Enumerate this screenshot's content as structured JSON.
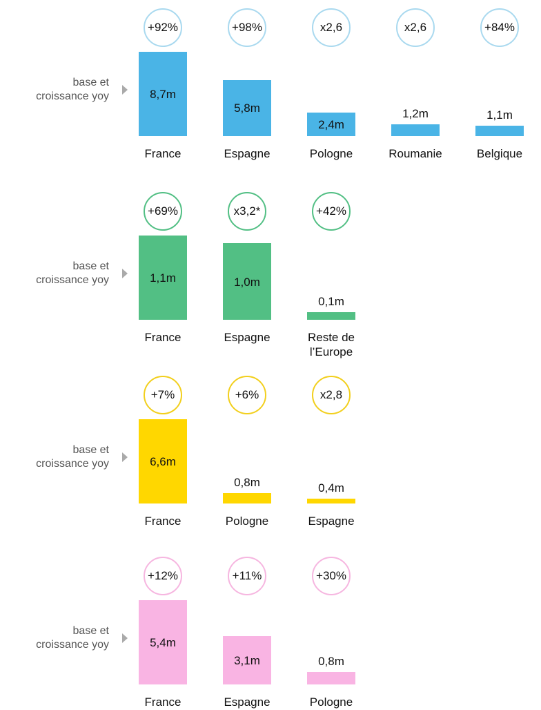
{
  "chart_data": [
    {
      "type": "bar",
      "label": "base et croissance yoy",
      "color": "#4ab4e6",
      "ring": "#a9d9ef",
      "categories": [
        "France",
        "Espagne",
        "Pologne",
        "Roumanie",
        "Belgique"
      ],
      "values": [
        8.7,
        5.8,
        2.4,
        1.2,
        1.1
      ],
      "value_labels": [
        "8,7m",
        "5,8m",
        "2,4m",
        "1,2m",
        "1,1m"
      ],
      "growth_labels": [
        "+92%",
        "+98%",
        "x2,6",
        "x2,6",
        "+84%"
      ],
      "ylim": [
        0,
        8.7
      ]
    },
    {
      "type": "bar",
      "label": "base et croissance yoy",
      "color": "#52bf84",
      "ring": "#52bf84",
      "categories": [
        "France",
        "Espagne",
        "Reste de l’Europe"
      ],
      "values": [
        1.1,
        1.0,
        0.1
      ],
      "value_labels": [
        "1,1m",
        "1,0m",
        "0,1m"
      ],
      "growth_labels": [
        "+69%",
        "x3,2*",
        "+42%"
      ],
      "ylim": [
        0,
        1.1
      ]
    },
    {
      "type": "bar",
      "label": "base et croissance yoy",
      "color": "#ffd700",
      "ring": "#f2cf1c",
      "categories": [
        "France",
        "Pologne",
        "Espagne"
      ],
      "values": [
        6.6,
        0.8,
        0.4
      ],
      "value_labels": [
        "6,6m",
        "0,8m",
        "0,4m"
      ],
      "growth_labels": [
        "+7%",
        "+6%",
        "x2,8"
      ],
      "ylim": [
        0,
        6.6
      ]
    },
    {
      "type": "bar",
      "label": "base et croissance yoy",
      "color": "#f9b4e3",
      "ring": "#f6b6e0",
      "categories": [
        "France",
        "Espagne",
        "Pologne"
      ],
      "values": [
        5.4,
        3.1,
        0.8
      ],
      "value_labels": [
        "5,4m",
        "3,1m",
        "0,8m"
      ],
      "growth_labels": [
        "+12%",
        "+11%",
        "+30%"
      ],
      "ylim": [
        0,
        5.4
      ]
    }
  ]
}
